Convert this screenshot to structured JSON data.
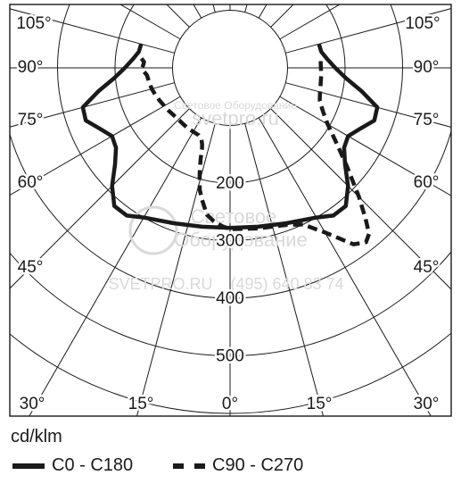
{
  "chart_data": {
    "type": "polar",
    "unit_label": "cd/klm",
    "radial_ticks": [
      200,
      300,
      400,
      500
    ],
    "radial_ticks_rmax": 600,
    "angle_ticks_deg": [
      0,
      15,
      30,
      45,
      60,
      75,
      90,
      105
    ],
    "angle_tick_labels": [
      "0°",
      "15°",
      "30°",
      "45°",
      "60°",
      "75°",
      "90°",
      "105°"
    ],
    "series": [
      {
        "name": "C0 - C180",
        "style": "solid",
        "color": "#1a1a1a",
        "points": [
          {
            "deg": 0,
            "cd": 278
          },
          {
            "deg": 10,
            "cd": 280
          },
          {
            "deg": 20,
            "cd": 287
          },
          {
            "deg": 30,
            "cd": 300
          },
          {
            "deg": 35,
            "cd": 313
          },
          {
            "deg": 40,
            "cd": 313
          },
          {
            "deg": 45,
            "cd": 290
          },
          {
            "deg": 50,
            "cd": 261
          },
          {
            "deg": 55,
            "cd": 242
          },
          {
            "deg": 60,
            "cd": 237
          },
          {
            "deg": 65,
            "cd": 250
          },
          {
            "deg": 70,
            "cd": 267
          },
          {
            "deg": 75,
            "cd": 265
          },
          {
            "deg": 80,
            "cd": 232
          },
          {
            "deg": 85,
            "cd": 202
          },
          {
            "deg": 90,
            "cd": 183
          },
          {
            "deg": 95,
            "cd": 170
          },
          {
            "deg": 100,
            "cd": 161
          },
          {
            "deg": 105,
            "cd": 160
          }
        ]
      },
      {
        "name": "C90 - C270",
        "style": "dashed",
        "color": "#1a1a1a",
        "c90_points": [
          {
            "deg": 0,
            "cd": 280
          },
          {
            "deg": 10,
            "cd": 283
          },
          {
            "deg": 20,
            "cd": 290
          },
          {
            "deg": 25,
            "cd": 300
          },
          {
            "deg": 30,
            "cd": 330
          },
          {
            "deg": 35,
            "cd": 374
          },
          {
            "deg": 38,
            "cd": 384
          },
          {
            "deg": 40,
            "cd": 376
          },
          {
            "deg": 42,
            "cd": 352
          },
          {
            "deg": 45,
            "cd": 317
          },
          {
            "deg": 50,
            "cd": 265
          },
          {
            "deg": 55,
            "cd": 225
          },
          {
            "deg": 60,
            "cd": 196
          },
          {
            "deg": 65,
            "cd": 178
          },
          {
            "deg": 70,
            "cd": 166
          },
          {
            "deg": 75,
            "cd": 162
          },
          {
            "deg": 80,
            "cd": 160
          },
          {
            "deg": 85,
            "cd": 159
          },
          {
            "deg": 90,
            "cd": 158
          },
          {
            "deg": 95,
            "cd": 158
          }
        ],
        "c270_points": [
          {
            "deg": 0,
            "cd": 280
          },
          {
            "deg": 3,
            "cd": 275
          },
          {
            "deg": 6,
            "cd": 268
          },
          {
            "deg": 9,
            "cd": 258
          },
          {
            "deg": 12,
            "cd": 234
          },
          {
            "deg": 14,
            "cd": 218
          },
          {
            "deg": 16,
            "cd": 192
          },
          {
            "deg": 17,
            "cd": 178
          },
          {
            "deg": 18,
            "cd": 165
          },
          {
            "deg": 19,
            "cd": 150
          },
          {
            "deg": 20,
            "cd": 142
          },
          {
            "deg": 22,
            "cd": 133
          },
          {
            "deg": 25,
            "cd": 129
          },
          {
            "deg": 30,
            "cd": 128
          },
          {
            "deg": 35,
            "cd": 128
          },
          {
            "deg": 40,
            "cd": 127
          },
          {
            "deg": 45,
            "cd": 127
          },
          {
            "deg": 50,
            "cd": 128
          },
          {
            "deg": 55,
            "cd": 130
          },
          {
            "deg": 60,
            "cd": 132
          },
          {
            "deg": 65,
            "cd": 135
          },
          {
            "deg": 70,
            "cd": 138
          },
          {
            "deg": 75,
            "cd": 141
          },
          {
            "deg": 80,
            "cd": 143
          },
          {
            "deg": 85,
            "cd": 145
          },
          {
            "deg": 88,
            "cd": 151
          },
          {
            "deg": 90,
            "cd": 153
          },
          {
            "deg": 92,
            "cd": 151
          },
          {
            "deg": 94,
            "cd": 150
          },
          {
            "deg": 96,
            "cd": 155
          }
        ]
      }
    ]
  },
  "watermark": {
    "lines": [
      "Световое Оборудование",
      "svetpro.ru",
      "Световое",
      "Оборудование",
      "SVETPRO.RU",
      "(495) 640 83 74"
    ]
  },
  "legend": {
    "unit": "cd/klm",
    "series1_label": "C0 - C180",
    "series2_label": "C90 - C270"
  }
}
